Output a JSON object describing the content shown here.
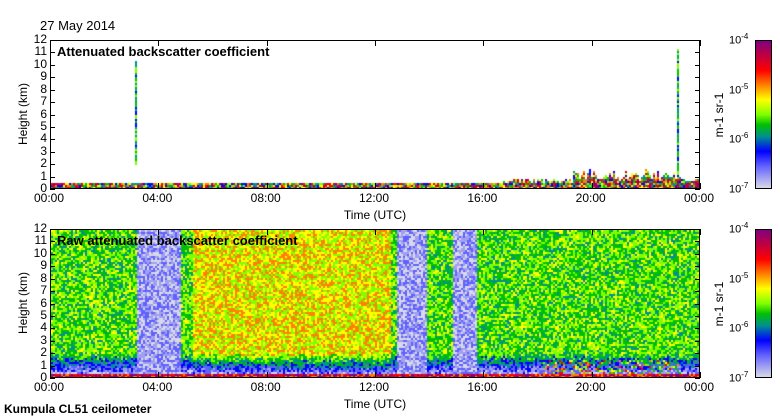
{
  "date": "27 May 2014",
  "footer": "Kumpula CL51 ceilometer",
  "chart_data": [
    {
      "type": "heatmap",
      "title": "Attenuated backscatter coefficient",
      "xlabel": "Time (UTC)",
      "ylabel": "Height (km)",
      "xticks": [
        "00:00",
        "04:00",
        "08:00",
        "12:00",
        "16:00",
        "20:00",
        "00:00"
      ],
      "yticks": [
        "0",
        "1",
        "2",
        "3",
        "4",
        "5",
        "6",
        "7",
        "8",
        "9",
        "10",
        "11",
        "12"
      ],
      "ylim": [
        0,
        12
      ],
      "colorbar": {
        "label": "m-1 sr-1",
        "ticks": [
          "10-7",
          "10-6",
          "10-5",
          "10-4"
        ],
        "scale": "log",
        "range": [
          1e-07,
          0.0001
        ]
      }
    },
    {
      "type": "heatmap",
      "title": "Raw attenuated backscatter coefficient",
      "xlabel": "Time (UTC)",
      "ylabel": "Height (km)",
      "xticks": [
        "00:00",
        "04:00",
        "08:00",
        "12:00",
        "16:00",
        "20:00",
        "00:00"
      ],
      "yticks": [
        "0",
        "1",
        "2",
        "3",
        "4",
        "5",
        "6",
        "7",
        "8",
        "9",
        "10",
        "11",
        "12"
      ],
      "ylim": [
        0,
        12
      ],
      "colorbar": {
        "label": "m-1 sr-1",
        "ticks": [
          "10-7",
          "10-6",
          "10-5",
          "10-4"
        ],
        "scale": "log",
        "range": [
          1e-07,
          0.0001
        ]
      }
    }
  ]
}
